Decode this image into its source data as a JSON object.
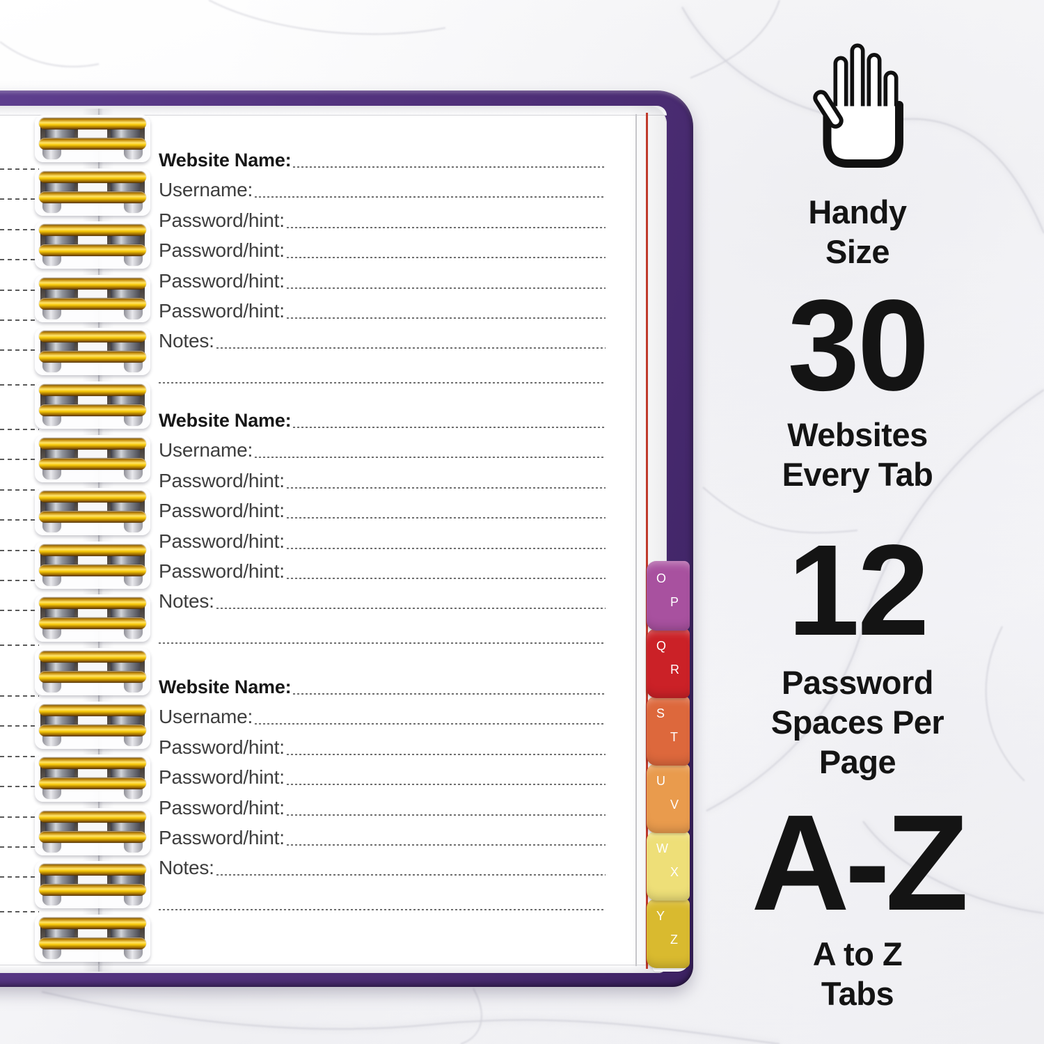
{
  "notebook": {
    "form_blocks": [
      [
        "Website Name:",
        "Username:",
        "Password/hint:",
        "Password/hint:",
        "Password/hint:",
        "Password/hint:",
        "Notes:"
      ],
      [
        "Website Name:",
        "Username:",
        "Password/hint:",
        "Password/hint:",
        "Password/hint:",
        "Password/hint:",
        "Notes:"
      ],
      [
        "Website Name:",
        "Username:",
        "Password/hint:",
        "Password/hint:",
        "Password/hint:",
        "Password/hint:",
        "Notes:"
      ]
    ],
    "tabs": [
      {
        "top_letter": "O",
        "bottom_letter": "P",
        "color": "#a8519f"
      },
      {
        "top_letter": "Q",
        "bottom_letter": "R",
        "color": "#cb2127"
      },
      {
        "top_letter": "S",
        "bottom_letter": "T",
        "color": "#dd683c"
      },
      {
        "top_letter": "U",
        "bottom_letter": "V",
        "color": "#e99b4d"
      },
      {
        "top_letter": "W",
        "bottom_letter": "X",
        "color": "#eedf78"
      },
      {
        "top_letter": "Y",
        "bottom_letter": "Z",
        "color": "#d9ba2f"
      }
    ],
    "ring_count": 16,
    "cover_color": "#53337f",
    "tab_sheet_edge_color": "#c0392b"
  },
  "promo": {
    "icon": "open-hand-icon",
    "feature1": {
      "heading_lines": [
        "Handy",
        "Size"
      ]
    },
    "feature2": {
      "number": "30",
      "caption_lines": [
        "Websites",
        "Every Tab"
      ]
    },
    "feature3": {
      "number": "12",
      "caption_lines": [
        "Password",
        "Spaces Per",
        "Page"
      ]
    },
    "feature4": {
      "number": "A-Z",
      "caption_lines": [
        "A to Z",
        "Tabs"
      ]
    }
  }
}
